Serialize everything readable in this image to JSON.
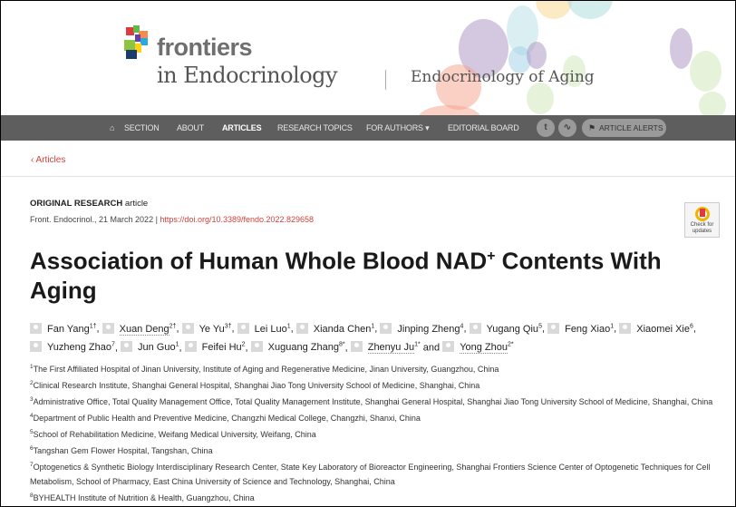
{
  "header": {
    "brand": "frontiers",
    "journal": "in Endocrinology",
    "section": "Endocrinology of Aging"
  },
  "nav": {
    "items": [
      "SECTION",
      "ABOUT",
      "ARTICLES",
      "RESEARCH TOPICS",
      "FOR AUTHORS ▾",
      "EDITORIAL BOARD"
    ],
    "active": "ARTICLES",
    "alerts": "ARTICLE ALERTS"
  },
  "back_link": "‹  Articles",
  "article": {
    "type_bold": "ORIGINAL RESEARCH",
    "type_rest": " article",
    "citation": "Front. Endocrinol., 21 March 2022 | ",
    "doi": "https://doi.org/10.3389/fendo.2022.829658",
    "badge": "Check for updates",
    "title_pre": "Association of Human Whole Blood NAD",
    "title_sup": "+",
    "title_post": " Contents With Aging",
    "authors": [
      {
        "name": "Fan Yang",
        "sup": "1†",
        "sep": ", "
      },
      {
        "name": "Xuan Deng",
        "sup": "2†",
        "sep": ", ",
        "ul": true
      },
      {
        "name": "Ye Yu",
        "sup": "3†",
        "sep": ", "
      },
      {
        "name": "Lei Luo",
        "sup": "1",
        "sep": ", "
      },
      {
        "name": "Xianda Chen",
        "sup": "1",
        "sep": ", "
      },
      {
        "name": "Jinping Zheng",
        "sup": "4",
        "sep": ", "
      },
      {
        "name": "Yugang Qiu",
        "sup": "5",
        "sep": ", "
      },
      {
        "name": "Feng Xiao",
        "sup": "1",
        "sep": ", "
      },
      {
        "name": "Xiaomei Xie",
        "sup": "6",
        "sep": ", "
      },
      {
        "name": "Yuzheng Zhao",
        "sup": "7",
        "sep": ", "
      },
      {
        "name": "Jun Guo",
        "sup": "1",
        "sep": ", "
      },
      {
        "name": "Feifei Hu",
        "sup": "2",
        "sep": ", "
      },
      {
        "name": "Xuguang Zhang",
        "sup": "8*",
        "sep": ", "
      },
      {
        "name": "Zhenyu Ju",
        "sup": "1*",
        "sep": " and ",
        "ul": true
      },
      {
        "name": "Yong Zhou",
        "sup": "2*",
        "sep": "",
        "ul": true
      }
    ],
    "affiliations": [
      {
        "n": "1",
        "text": "The First Affiliated Hospital of Jinan University, Institute of Aging and Regenerative Medicine, Jinan University, Guangzhou, China"
      },
      {
        "n": "2",
        "text": "Clinical Research Institute, Shanghai General Hospital, Shanghai Jiao Tong University School of Medicine, Shanghai, China"
      },
      {
        "n": "3",
        "text": "Administrative Office, Total Quality Management Office, Total Quality Management Institute, Shanghai General Hospital, Shanghai Jiao Tong University School of Medicine, Shanghai, China"
      },
      {
        "n": "4",
        "text": "Department of Public Health and Preventive Medicine, Changzhi Medical College, Changzhi, Shanxi, China"
      },
      {
        "n": "5",
        "text": "School of Rehabilitation Medicine, Weifang Medical University, Weifang, China"
      },
      {
        "n": "6",
        "text": "Tangshan Gem Flower Hospital, Tangshan, China"
      },
      {
        "n": "7",
        "text": "Optogenetics & Synthetic Biology Interdisciplinary Research Center, State Key Laboratory of Bioreactor Engineering, Shanghai Frontiers Science Center of Optogenetic Techniques for Cell Metabolism, School of Pharmacy, East China University of Science and Technology, Shanghai, China"
      },
      {
        "n": "8",
        "text": "BYHEALTH Institute of Nutrition & Health, Guangzhou, China"
      }
    ]
  },
  "colors": {
    "accent": "#d0413b",
    "nav_bg": "#5e5e5e"
  }
}
